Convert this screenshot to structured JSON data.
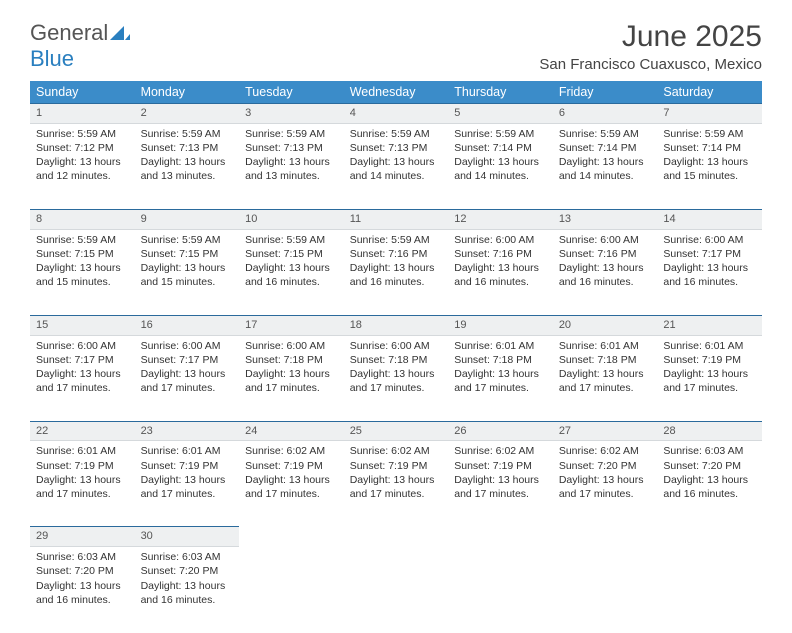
{
  "logo": {
    "text1": "General",
    "text2": "Blue"
  },
  "title": "June 2025",
  "location": "San Francisco Cuaxusco, Mexico",
  "colors": {
    "header_bg": "#3b8cc9",
    "header_text": "#ffffff",
    "daynum_bg": "#eef0f1",
    "daynum_border_top": "#2a6a9c",
    "logo_blue": "#2a7fbf"
  },
  "day_headers": [
    "Sunday",
    "Monday",
    "Tuesday",
    "Wednesday",
    "Thursday",
    "Friday",
    "Saturday"
  ],
  "weeks": [
    [
      {
        "n": "1",
        "sr": "5:59 AM",
        "ss": "7:12 PM",
        "dl": "13 hours and 12 minutes."
      },
      {
        "n": "2",
        "sr": "5:59 AM",
        "ss": "7:13 PM",
        "dl": "13 hours and 13 minutes."
      },
      {
        "n": "3",
        "sr": "5:59 AM",
        "ss": "7:13 PM",
        "dl": "13 hours and 13 minutes."
      },
      {
        "n": "4",
        "sr": "5:59 AM",
        "ss": "7:13 PM",
        "dl": "13 hours and 14 minutes."
      },
      {
        "n": "5",
        "sr": "5:59 AM",
        "ss": "7:14 PM",
        "dl": "13 hours and 14 minutes."
      },
      {
        "n": "6",
        "sr": "5:59 AM",
        "ss": "7:14 PM",
        "dl": "13 hours and 14 minutes."
      },
      {
        "n": "7",
        "sr": "5:59 AM",
        "ss": "7:14 PM",
        "dl": "13 hours and 15 minutes."
      }
    ],
    [
      {
        "n": "8",
        "sr": "5:59 AM",
        "ss": "7:15 PM",
        "dl": "13 hours and 15 minutes."
      },
      {
        "n": "9",
        "sr": "5:59 AM",
        "ss": "7:15 PM",
        "dl": "13 hours and 15 minutes."
      },
      {
        "n": "10",
        "sr": "5:59 AM",
        "ss": "7:15 PM",
        "dl": "13 hours and 16 minutes."
      },
      {
        "n": "11",
        "sr": "5:59 AM",
        "ss": "7:16 PM",
        "dl": "13 hours and 16 minutes."
      },
      {
        "n": "12",
        "sr": "6:00 AM",
        "ss": "7:16 PM",
        "dl": "13 hours and 16 minutes."
      },
      {
        "n": "13",
        "sr": "6:00 AM",
        "ss": "7:16 PM",
        "dl": "13 hours and 16 minutes."
      },
      {
        "n": "14",
        "sr": "6:00 AM",
        "ss": "7:17 PM",
        "dl": "13 hours and 16 minutes."
      }
    ],
    [
      {
        "n": "15",
        "sr": "6:00 AM",
        "ss": "7:17 PM",
        "dl": "13 hours and 17 minutes."
      },
      {
        "n": "16",
        "sr": "6:00 AM",
        "ss": "7:17 PM",
        "dl": "13 hours and 17 minutes."
      },
      {
        "n": "17",
        "sr": "6:00 AM",
        "ss": "7:18 PM",
        "dl": "13 hours and 17 minutes."
      },
      {
        "n": "18",
        "sr": "6:00 AM",
        "ss": "7:18 PM",
        "dl": "13 hours and 17 minutes."
      },
      {
        "n": "19",
        "sr": "6:01 AM",
        "ss": "7:18 PM",
        "dl": "13 hours and 17 minutes."
      },
      {
        "n": "20",
        "sr": "6:01 AM",
        "ss": "7:18 PM",
        "dl": "13 hours and 17 minutes."
      },
      {
        "n": "21",
        "sr": "6:01 AM",
        "ss": "7:19 PM",
        "dl": "13 hours and 17 minutes."
      }
    ],
    [
      {
        "n": "22",
        "sr": "6:01 AM",
        "ss": "7:19 PM",
        "dl": "13 hours and 17 minutes."
      },
      {
        "n": "23",
        "sr": "6:01 AM",
        "ss": "7:19 PM",
        "dl": "13 hours and 17 minutes."
      },
      {
        "n": "24",
        "sr": "6:02 AM",
        "ss": "7:19 PM",
        "dl": "13 hours and 17 minutes."
      },
      {
        "n": "25",
        "sr": "6:02 AM",
        "ss": "7:19 PM",
        "dl": "13 hours and 17 minutes."
      },
      {
        "n": "26",
        "sr": "6:02 AM",
        "ss": "7:19 PM",
        "dl": "13 hours and 17 minutes."
      },
      {
        "n": "27",
        "sr": "6:02 AM",
        "ss": "7:20 PM",
        "dl": "13 hours and 17 minutes."
      },
      {
        "n": "28",
        "sr": "6:03 AM",
        "ss": "7:20 PM",
        "dl": "13 hours and 16 minutes."
      }
    ],
    [
      {
        "n": "29",
        "sr": "6:03 AM",
        "ss": "7:20 PM",
        "dl": "13 hours and 16 minutes."
      },
      {
        "n": "30",
        "sr": "6:03 AM",
        "ss": "7:20 PM",
        "dl": "13 hours and 16 minutes."
      },
      null,
      null,
      null,
      null,
      null
    ]
  ],
  "labels": {
    "sunrise": "Sunrise: ",
    "sunset": "Sunset: ",
    "daylight": "Daylight: "
  }
}
